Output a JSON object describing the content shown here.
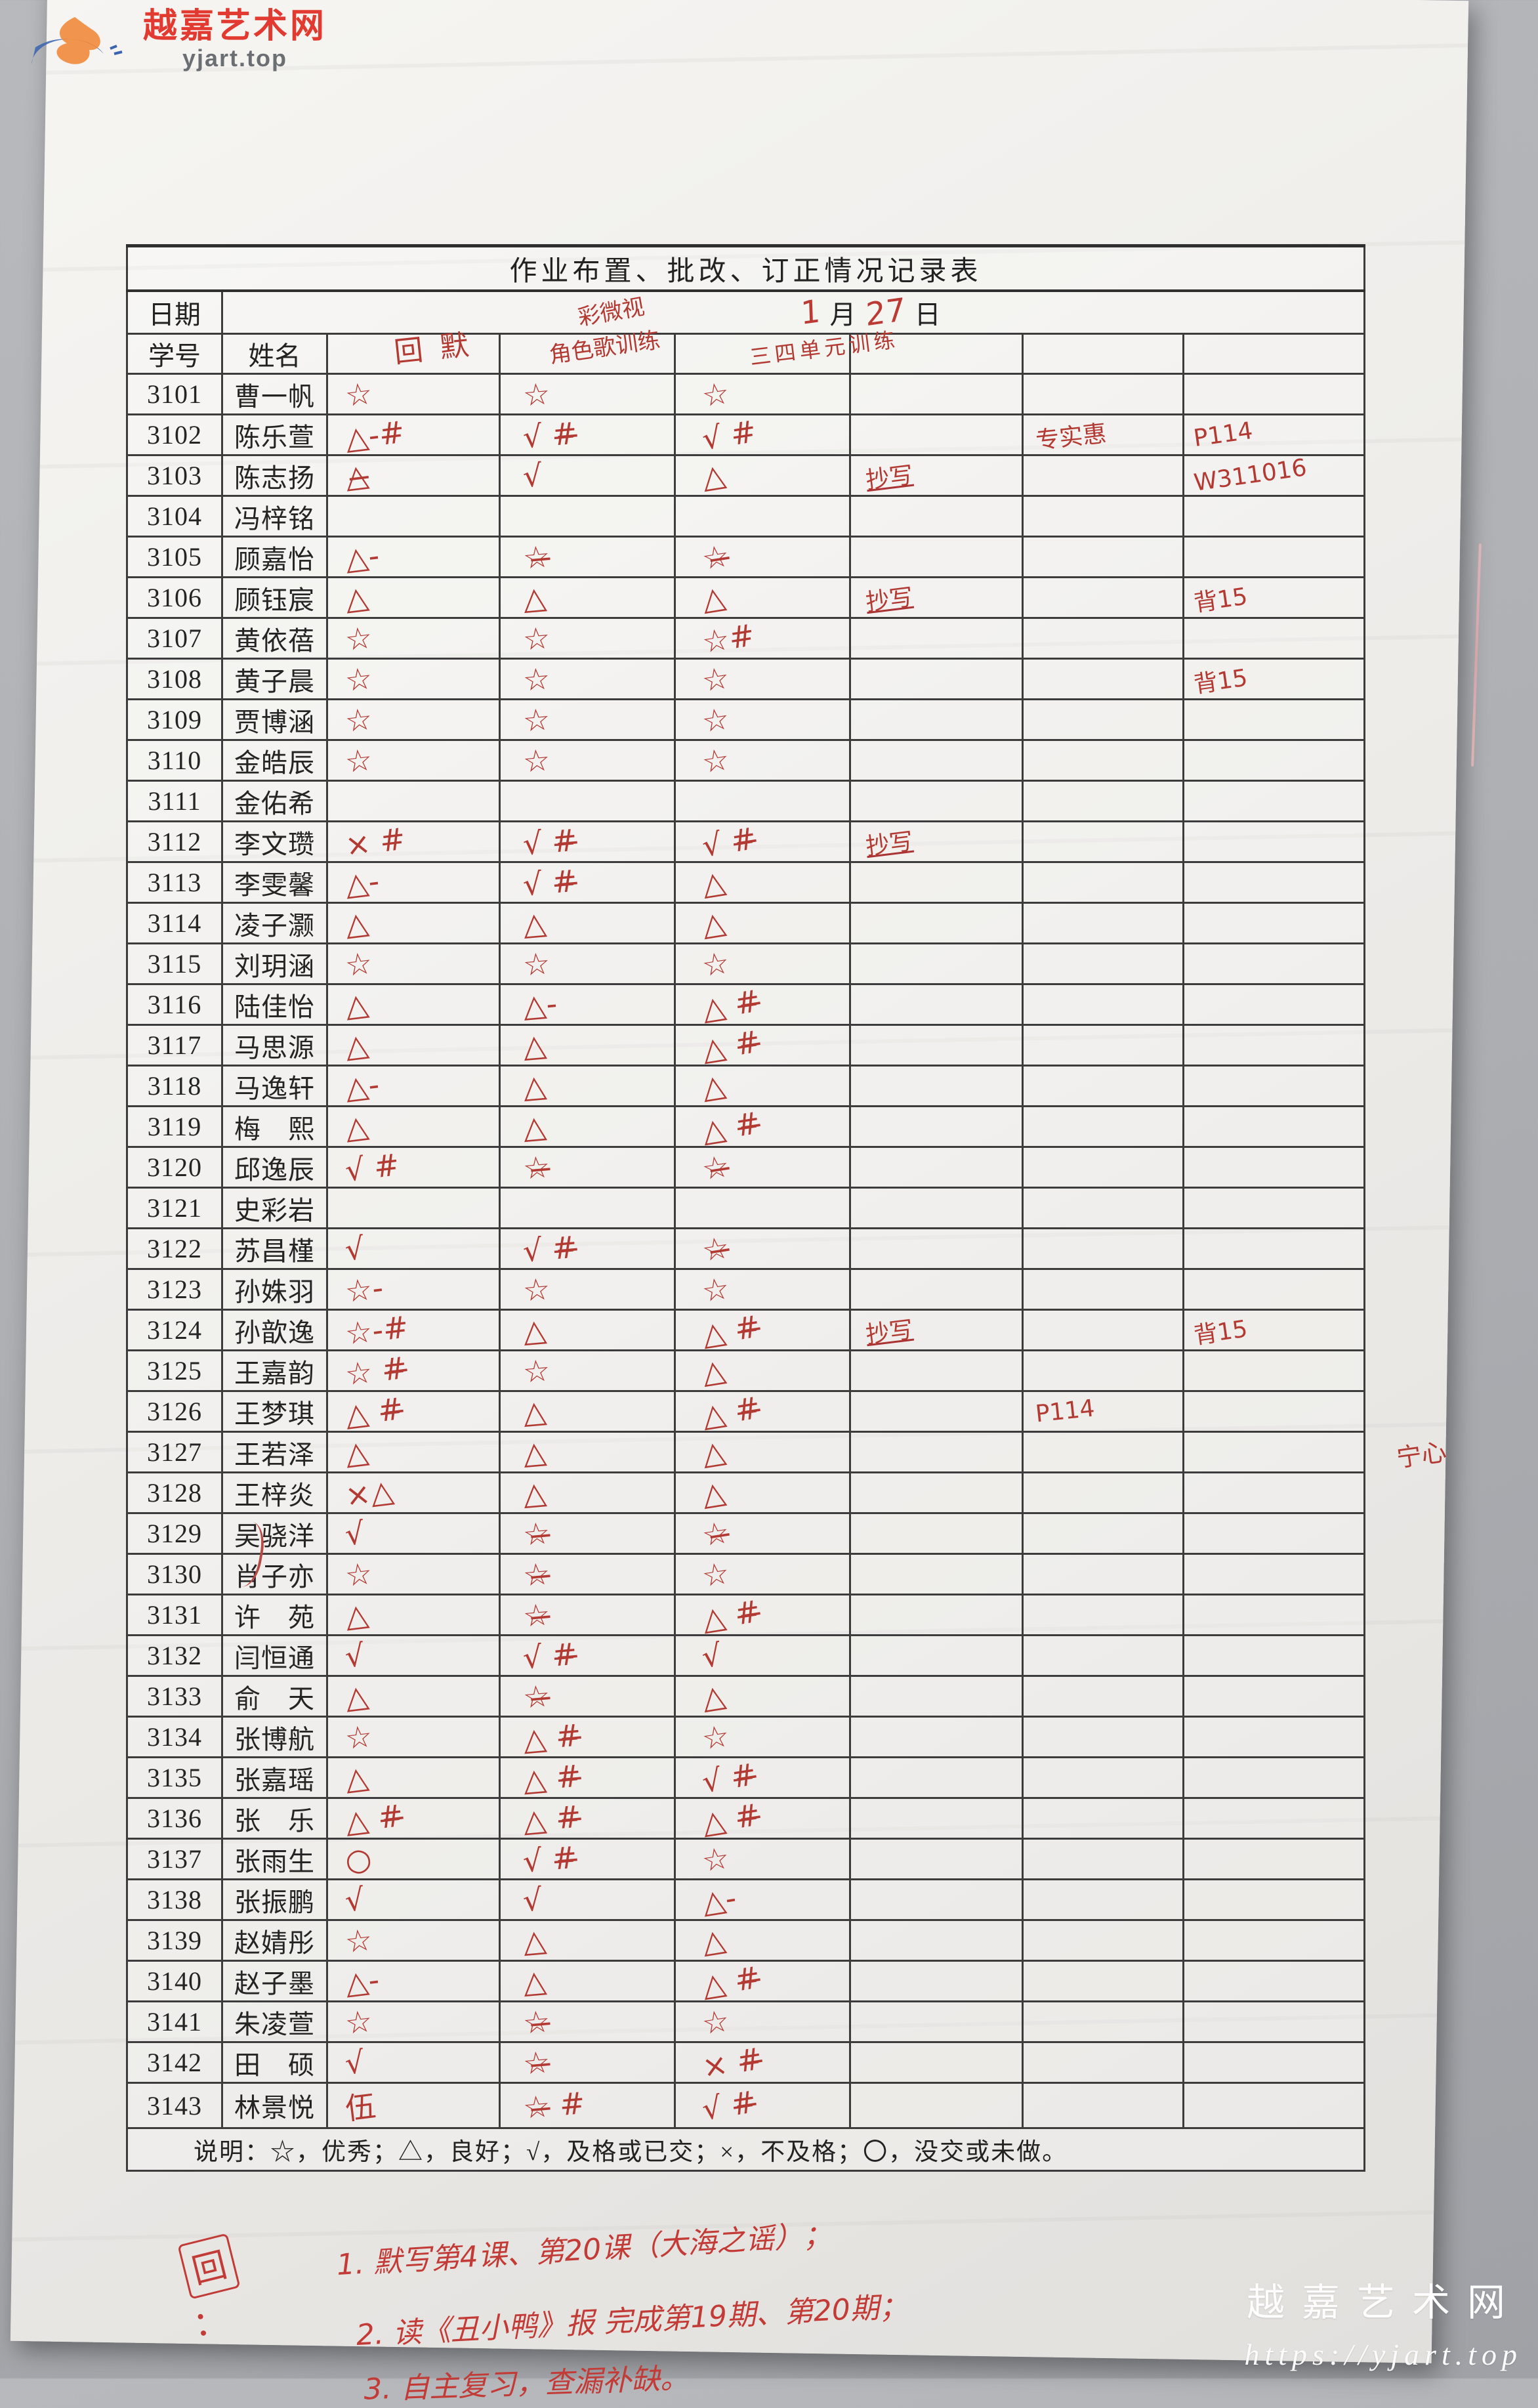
{
  "watermark_top": {
    "site_name": "越嘉艺术网",
    "site_url": "yjart.top"
  },
  "watermark_bottom": {
    "site_name": "越嘉艺术网",
    "site_url": "https://yjart.top"
  },
  "table": {
    "title": "作业布置、批改、订正情况记录表",
    "date_label": "日期",
    "date_month_num": "1",
    "date_month_char": "月",
    "date_day_num": "27",
    "date_day_char": "日",
    "col_id_label": "学号",
    "col_name_label": "姓名",
    "task_headers": [
      "回默",
      "彩微视",
      "角色歌训练",
      "三四单元训练"
    ],
    "legend": "说明：☆，优秀；△，良好；√，及格或已交；×，不及格；〇，没交或未做。",
    "rows": [
      {
        "id": "3101",
        "name": "曹一帆",
        "c1": "☆",
        "c2": "☆",
        "c3": "☆",
        "c4": "",
        "c5": "",
        "c6": ""
      },
      {
        "id": "3102",
        "name": "陈乐萱",
        "c1": "△-#",
        "c2": "√ #̶",
        "c3": "√ #",
        "c4": "",
        "c5": "专实惠",
        "c6": "P114"
      },
      {
        "id": "3103",
        "name": "陈志扬",
        "c1": "△̶",
        "c2": "√",
        "c3": "△",
        "c4": "抄写",
        "c5": "",
        "c6": "W311016"
      },
      {
        "id": "3104",
        "name": "冯梓铭",
        "c1": "",
        "c2": "",
        "c3": "",
        "c4": "",
        "c5": "",
        "c6": ""
      },
      {
        "id": "3105",
        "name": "顾嘉怡",
        "c1": "△-",
        "c2": "☆̶",
        "c3": "☆̶",
        "c4": "",
        "c5": "",
        "c6": ""
      },
      {
        "id": "3106",
        "name": "顾钰宸",
        "c1": "△",
        "c2": "△",
        "c3": "△",
        "c4": "抄写",
        "c5": "",
        "c6": "背15"
      },
      {
        "id": "3107",
        "name": "黄依蓓",
        "c1": "☆",
        "c2": "☆",
        "c3": "☆#",
        "c4": "",
        "c5": "",
        "c6": ""
      },
      {
        "id": "3108",
        "name": "黄子晨",
        "c1": "☆",
        "c2": "☆",
        "c3": "☆",
        "c4": "",
        "c5": "",
        "c6": "背15"
      },
      {
        "id": "3109",
        "name": "贾博涵",
        "c1": "☆",
        "c2": "☆",
        "c3": "☆",
        "c4": "",
        "c5": "",
        "c6": ""
      },
      {
        "id": "3110",
        "name": "金皓辰",
        "c1": "☆",
        "c2": "☆",
        "c3": "☆",
        "c4": "",
        "c5": "",
        "c6": ""
      },
      {
        "id": "3111",
        "name": "金佑希",
        "c1": "",
        "c2": "",
        "c3": "",
        "c4": "",
        "c5": "",
        "c6": ""
      },
      {
        "id": "3112",
        "name": "李文瓒",
        "c1": "× #",
        "c2": "√ #̶",
        "c3": "√ #̶",
        "c4": "抄写",
        "c5": "",
        "c6": ""
      },
      {
        "id": "3113",
        "name": "李雯馨",
        "c1": "△-",
        "c2": "√ #̶",
        "c3": "△",
        "c4": "",
        "c5": "",
        "c6": ""
      },
      {
        "id": "3114",
        "name": "凌子灏",
        "c1": "△",
        "c2": "△",
        "c3": "△",
        "c4": "",
        "c5": "",
        "c6": ""
      },
      {
        "id": "3115",
        "name": "刘玥涵",
        "c1": "☆",
        "c2": "☆",
        "c3": "☆",
        "c4": "",
        "c5": "",
        "c6": ""
      },
      {
        "id": "3116",
        "name": "陆佳怡",
        "c1": "△",
        "c2": "△-",
        "c3": "△ #̶",
        "c4": "",
        "c5": "",
        "c6": ""
      },
      {
        "id": "3117",
        "name": "马思源",
        "c1": "△",
        "c2": "△",
        "c3": "△ #̶",
        "c4": "",
        "c5": "",
        "c6": ""
      },
      {
        "id": "3118",
        "name": "马逸轩",
        "c1": "△-",
        "c2": "△",
        "c3": "△",
        "c4": "",
        "c5": "",
        "c6": ""
      },
      {
        "id": "3119",
        "name": "梅　熙",
        "c1": "△",
        "c2": "△",
        "c3": "△ #̶",
        "c4": "",
        "c5": "",
        "c6": ""
      },
      {
        "id": "3120",
        "name": "邱逸辰",
        "c1": "√ #",
        "c2": "☆̶",
        "c3": "☆̶",
        "c4": "",
        "c5": "",
        "c6": ""
      },
      {
        "id": "3121",
        "name": "史彩岩",
        "c1": "",
        "c2": "",
        "c3": "",
        "c4": "",
        "c5": "",
        "c6": ""
      },
      {
        "id": "3122",
        "name": "苏昌槿",
        "c1": "√",
        "c2": "√ #̶",
        "c3": "☆̶",
        "c4": "",
        "c5": "",
        "c6": ""
      },
      {
        "id": "3123",
        "name": "孙姝羽",
        "c1": "☆-",
        "c2": "☆",
        "c3": "☆",
        "c4": "",
        "c5": "",
        "c6": ""
      },
      {
        "id": "3124",
        "name": "孙歆逸",
        "c1": "☆-#",
        "c2": "△",
        "c3": "△ #̶",
        "c4": "抄写",
        "c5": "",
        "c6": "背15"
      },
      {
        "id": "3125",
        "name": "王嘉韵",
        "c1": "☆ #̶",
        "c2": "☆",
        "c3": "△",
        "c4": "",
        "c5": "",
        "c6": ""
      },
      {
        "id": "3126",
        "name": "王梦琪",
        "c1": "△ #̶",
        "c2": "△",
        "c3": "△ #̶",
        "c4": "",
        "c5": "P114",
        "c6": ""
      },
      {
        "id": "3127",
        "name": "王若泽",
        "c1": "△",
        "c2": "△",
        "c3": "△",
        "c4": "",
        "c5": "",
        "c6": ""
      },
      {
        "id": "3128",
        "name": "王梓炎",
        "c1": "×△",
        "c2": "△",
        "c3": "△",
        "c4": "",
        "c5": "",
        "c6": ""
      },
      {
        "id": "3129",
        "name": "吴骁洋",
        "c1": "√",
        "c2": "☆̶",
        "c3": "☆̶",
        "c4": "",
        "c5": "",
        "c6": ""
      },
      {
        "id": "3130",
        "name": "肖子亦",
        "c1": "☆",
        "c2": "☆̶",
        "c3": "☆",
        "c4": "",
        "c5": "",
        "c6": ""
      },
      {
        "id": "3131",
        "name": "许　苑",
        "c1": "△",
        "c2": "☆̶",
        "c3": "△ #̶",
        "c4": "",
        "c5": "",
        "c6": ""
      },
      {
        "id": "3132",
        "name": "闫恒通",
        "c1": "√",
        "c2": "√ #̶",
        "c3": "√",
        "c4": "",
        "c5": "",
        "c6": ""
      },
      {
        "id": "3133",
        "name": "俞　天",
        "c1": "△",
        "c2": "☆̶",
        "c3": "△",
        "c4": "",
        "c5": "",
        "c6": ""
      },
      {
        "id": "3134",
        "name": "张博航",
        "c1": "☆",
        "c2": "△ #̶",
        "c3": "☆",
        "c4": "",
        "c5": "",
        "c6": ""
      },
      {
        "id": "3135",
        "name": "张嘉瑶",
        "c1": "△",
        "c2": "△ #̶",
        "c3": "√ #̶",
        "c4": "",
        "c5": "",
        "c6": ""
      },
      {
        "id": "3136",
        "name": "张　乐",
        "c1": "△ #̶",
        "c2": "△ #̶",
        "c3": "△ #̶",
        "c4": "",
        "c5": "",
        "c6": ""
      },
      {
        "id": "3137",
        "name": "张雨生",
        "c1": "○",
        "c2": "√ #̶",
        "c3": "☆",
        "c4": "",
        "c5": "",
        "c6": ""
      },
      {
        "id": "3138",
        "name": "张振鹏",
        "c1": "√",
        "c2": "√",
        "c3": "△-",
        "c4": "",
        "c5": "",
        "c6": ""
      },
      {
        "id": "3139",
        "name": "赵婧彤",
        "c1": "☆",
        "c2": "△",
        "c3": "△",
        "c4": "",
        "c5": "",
        "c6": ""
      },
      {
        "id": "3140",
        "name": "赵子墨",
        "c1": "△-",
        "c2": "△",
        "c3": "△ #̶",
        "c4": "",
        "c5": "",
        "c6": ""
      },
      {
        "id": "3141",
        "name": "朱凌萱",
        "c1": "☆",
        "c2": "☆̶",
        "c3": "☆",
        "c4": "",
        "c5": "",
        "c6": ""
      },
      {
        "id": "3142",
        "name": "田　硕",
        "c1": "√",
        "c2": "☆̶",
        "c3": "× #̶",
        "c4": "",
        "c5": "",
        "c6": ""
      },
      {
        "id": "3143",
        "name": "林景悦",
        "c1": "伍",
        "c2": "☆̶ #",
        "c3": "√ #̶",
        "c4": "",
        "c5": "",
        "c6": ""
      }
    ]
  },
  "margin_note": "宁心",
  "notes": {
    "prefix": "回：",
    "prefix_boxed": "回",
    "lines": [
      "1. 默写第4课、第20课（大海之谣）；",
      "2. 读《丑小鸭》报 完成第19期、第20期；",
      "3. 自主复习，查漏补缺。"
    ]
  }
}
